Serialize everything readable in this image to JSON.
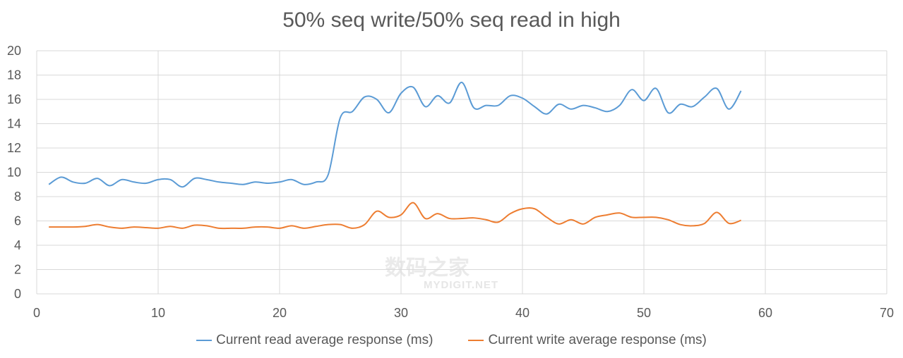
{
  "chart_data": {
    "type": "line",
    "title": "50% seq write/50% seq read in high",
    "xlabel": "",
    "ylabel": "",
    "xlim": [
      0,
      70
    ],
    "ylim": [
      0,
      20
    ],
    "xticks": [
      0,
      10,
      20,
      30,
      40,
      50,
      60,
      70
    ],
    "yticks": [
      0,
      2,
      4,
      6,
      8,
      10,
      12,
      14,
      16,
      18,
      20
    ],
    "grid": true,
    "legend_position": "bottom",
    "x": [
      1,
      2,
      3,
      4,
      5,
      6,
      7,
      8,
      9,
      10,
      11,
      12,
      13,
      14,
      15,
      16,
      17,
      18,
      19,
      20,
      21,
      22,
      23,
      24,
      25,
      26,
      27,
      28,
      29,
      30,
      31,
      32,
      33,
      34,
      35,
      36,
      37,
      38,
      39,
      40,
      41,
      42,
      43,
      44,
      45,
      46,
      47,
      48,
      49,
      50,
      51,
      52,
      53,
      54,
      55,
      56,
      57,
      58
    ],
    "series": [
      {
        "name": "Current read average response (ms)",
        "color": "#5b9bd5",
        "values": [
          9.0,
          9.6,
          9.2,
          9.1,
          9.5,
          8.9,
          9.4,
          9.2,
          9.1,
          9.4,
          9.4,
          8.8,
          9.5,
          9.4,
          9.2,
          9.1,
          9.0,
          9.2,
          9.1,
          9.2,
          9.4,
          9.0,
          9.2,
          9.8,
          14.5,
          15.0,
          16.2,
          16.0,
          14.9,
          16.5,
          17.0,
          15.4,
          16.3,
          15.7,
          17.4,
          15.3,
          15.5,
          15.5,
          16.3,
          16.1,
          15.4,
          14.8,
          15.6,
          15.2,
          15.5,
          15.3,
          15.0,
          15.5,
          16.8,
          15.9,
          16.9,
          14.9,
          15.6,
          15.4,
          16.2,
          16.9,
          15.2,
          16.7
        ]
      },
      {
        "name": "Current write average response (ms)",
        "color": "#ed7d31",
        "values": [
          5.5,
          5.5,
          5.5,
          5.55,
          5.7,
          5.5,
          5.4,
          5.5,
          5.45,
          5.4,
          5.55,
          5.4,
          5.65,
          5.6,
          5.4,
          5.4,
          5.4,
          5.5,
          5.5,
          5.4,
          5.6,
          5.4,
          5.55,
          5.7,
          5.7,
          5.4,
          5.7,
          6.8,
          6.3,
          6.5,
          7.5,
          6.2,
          6.6,
          6.2,
          6.2,
          6.25,
          6.1,
          5.9,
          6.6,
          7.0,
          7.0,
          6.3,
          5.75,
          6.1,
          5.75,
          6.3,
          6.5,
          6.65,
          6.3,
          6.3,
          6.3,
          6.1,
          5.7,
          5.6,
          5.8,
          6.7,
          5.8,
          6.05
        ]
      }
    ]
  },
  "watermark": {
    "cn": "数码之家",
    "en": "MYDIGIT.NET"
  }
}
